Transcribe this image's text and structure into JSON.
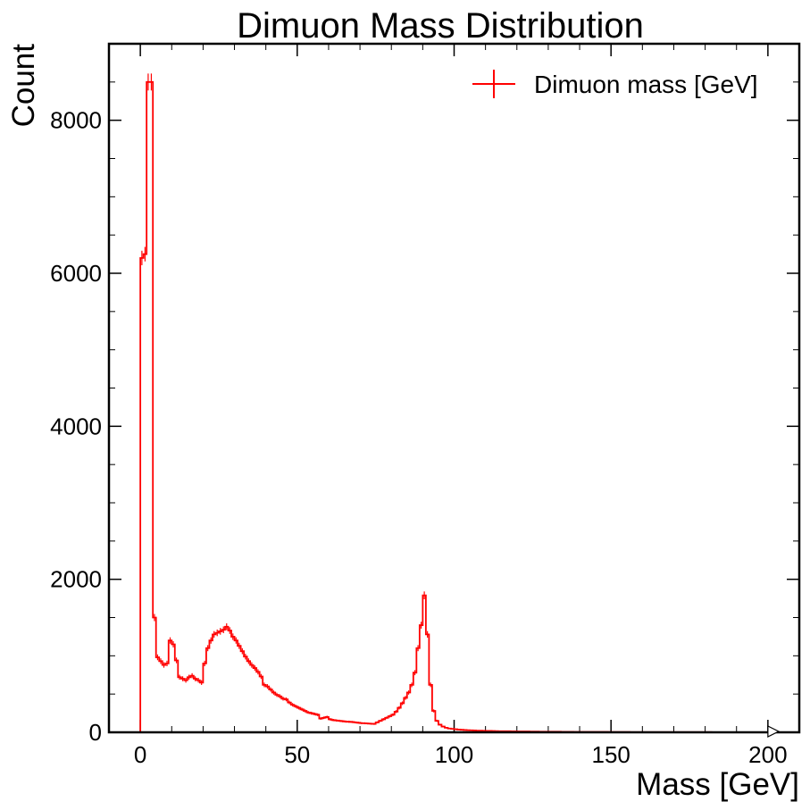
{
  "chart_data": {
    "type": "histogram",
    "title": "Dimuon Mass Distribution",
    "xlabel": "Mass [GeV]",
    "ylabel": "Count",
    "xlim": [
      -10,
      210
    ],
    "ylim": [
      0,
      9000
    ],
    "xticks": [
      0,
      50,
      100,
      150,
      200
    ],
    "xtick_labels": [
      "0",
      "50",
      "100",
      "150",
      "200"
    ],
    "yticks": [
      0,
      2000,
      4000,
      6000,
      8000
    ],
    "ytick_labels": [
      "0",
      "2000",
      "4000",
      "6000",
      "8000"
    ],
    "grid": false,
    "legend": {
      "position": "top-right",
      "entries": [
        "Dimuon mass [GeV]"
      ]
    },
    "series": [
      {
        "name": "Dimuon mass [GeV]",
        "color": "#ff0000",
        "bin_width": 1.0,
        "bin_start": 0,
        "counts": [
          6200,
          6250,
          8500,
          8500,
          1500,
          980,
          930,
          880,
          900,
          1200,
          1150,
          940,
          720,
          700,
          680,
          720,
          740,
          700,
          680,
          650,
          900,
          1100,
          1200,
          1280,
          1300,
          1320,
          1340,
          1380,
          1330,
          1250,
          1200,
          1130,
          1060,
          990,
          930,
          880,
          840,
          790,
          730,
          620,
          600,
          560,
          520,
          490,
          470,
          440,
          430,
          390,
          360,
          340,
          320,
          300,
          280,
          260,
          250,
          240,
          230,
          180,
          190,
          200,
          170,
          160,
          155,
          150,
          145,
          140,
          138,
          135,
          130,
          125,
          120,
          118,
          115,
          112,
          110,
          130,
          150,
          170,
          190,
          210,
          230,
          270,
          320,
          380,
          450,
          520,
          620,
          780,
          1100,
          1400,
          1790,
          1280,
          620,
          280,
          150,
          100,
          75,
          60,
          50,
          45,
          40,
          36,
          33,
          30,
          28,
          26,
          24,
          22,
          21,
          20,
          19,
          18,
          17,
          16,
          15,
          15,
          14,
          14,
          13,
          13,
          12,
          12,
          11,
          11,
          10,
          10,
          10,
          9,
          9,
          9,
          8,
          8,
          8,
          8,
          7,
          7,
          7,
          7,
          6,
          6,
          6,
          6,
          6,
          5,
          5,
          5,
          5,
          5,
          5,
          4,
          4,
          4,
          4,
          4,
          4,
          4,
          3,
          3,
          3,
          3,
          3,
          3,
          3,
          3,
          3,
          3,
          2,
          2,
          2,
          2,
          2,
          2,
          2,
          2,
          2,
          2,
          2,
          2,
          2,
          2,
          2,
          2,
          1,
          1,
          1,
          1,
          1,
          1,
          1,
          1,
          1,
          1,
          1,
          1,
          1,
          1,
          1,
          1,
          1,
          1
        ]
      }
    ]
  }
}
